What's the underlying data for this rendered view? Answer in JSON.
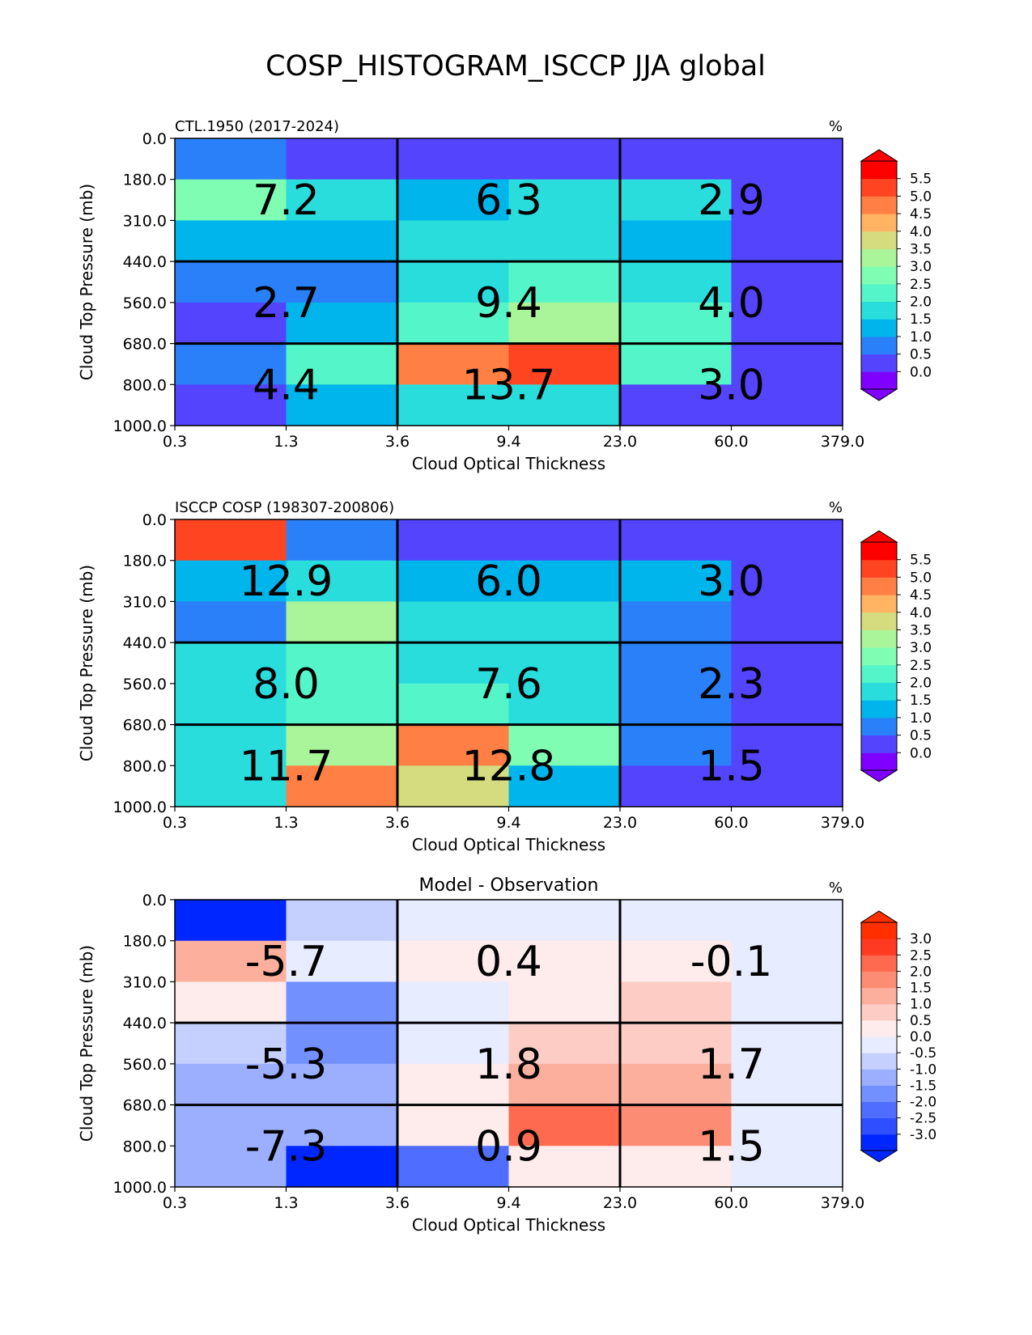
{
  "figure_title": "COSP_HISTOGRAM_ISCCP JJA global",
  "chart_data": [
    {
      "type": "heatmap",
      "title_left": "CTL.1950 (2017-2024)",
      "title_center": "",
      "units": "%",
      "xlabel": "Cloud Optical Thickness",
      "ylabel": "Cloud Top Pressure (mb)",
      "x_ticks": [
        "0.3",
        "1.3",
        "3.6",
        "9.4",
        "23.0",
        "60.0",
        "379.0"
      ],
      "y_ticks": [
        "0.0",
        "180.0",
        "310.0",
        "440.0",
        "560.0",
        "680.0",
        "800.0",
        "1000.0"
      ],
      "cells": [
        [
          0.9,
          0.2,
          0.2,
          0.2,
          0.2,
          0.2
        ],
        [
          2.6,
          1.9,
          1.4,
          1.9,
          1.9,
          0.2
        ],
        [
          1.4,
          1.4,
          1.9,
          1.9,
          1.4,
          0.2
        ],
        [
          0.9,
          0.9,
          1.9,
          2.4,
          1.9,
          0.2
        ],
        [
          0.2,
          1.4,
          2.4,
          3.2,
          2.4,
          0.2
        ],
        [
          0.9,
          2.4,
          4.7,
          5.3,
          2.4,
          0.2
        ],
        [
          0.2,
          1.4,
          1.9,
          1.9,
          0.2,
          0.2
        ]
      ],
      "block_sums": [
        "7.2",
        "6.3",
        "2.9",
        "2.7",
        "9.4",
        "4.0",
        "4.4",
        "13.7",
        "3.0"
      ],
      "colorbar": {
        "cmap": "rainbow",
        "levels": [
          -0.5,
          0.0,
          0.5,
          1.0,
          1.5,
          2.0,
          2.5,
          3.0,
          3.5,
          4.0,
          4.5,
          5.0,
          5.5,
          6.0
        ],
        "tick_labels": [
          "0.0",
          "0.5",
          "1.0",
          "1.5",
          "2.0",
          "2.5",
          "3.0",
          "3.5",
          "4.0",
          "4.5",
          "5.0",
          "5.5"
        ],
        "extend": "both"
      }
    },
    {
      "type": "heatmap",
      "title_left": "ISCCP COSP (198307-200806)",
      "title_center": "",
      "units": "%",
      "xlabel": "Cloud Optical Thickness",
      "ylabel": "Cloud Top Pressure (mb)",
      "x_ticks": [
        "0.3",
        "1.3",
        "3.6",
        "9.4",
        "23.0",
        "60.0",
        "379.0"
      ],
      "y_ticks": [
        "0.0",
        "180.0",
        "310.0",
        "440.0",
        "560.0",
        "680.0",
        "800.0",
        "1000.0"
      ],
      "cells": [
        [
          5.3,
          0.9,
          0.2,
          0.2,
          0.2,
          0.2
        ],
        [
          1.4,
          1.9,
          1.4,
          1.4,
          1.4,
          0.2
        ],
        [
          0.9,
          3.2,
          1.9,
          1.9,
          0.9,
          0.2
        ],
        [
          1.9,
          2.4,
          1.9,
          1.9,
          0.9,
          0.2
        ],
        [
          1.9,
          2.4,
          2.4,
          1.9,
          0.9,
          0.2
        ],
        [
          1.9,
          3.2,
          4.7,
          2.7,
          0.9,
          0.2
        ],
        [
          1.9,
          4.7,
          3.7,
          1.4,
          0.2,
          0.2
        ]
      ],
      "block_sums": [
        "12.9",
        "6.0",
        "3.0",
        "8.0",
        "7.6",
        "2.3",
        "11.7",
        "12.8",
        "1.5"
      ],
      "colorbar": {
        "cmap": "rainbow",
        "levels": [
          -0.5,
          0.0,
          0.5,
          1.0,
          1.5,
          2.0,
          2.5,
          3.0,
          3.5,
          4.0,
          4.5,
          5.0,
          5.5,
          6.0
        ],
        "tick_labels": [
          "0.0",
          "0.5",
          "1.0",
          "1.5",
          "2.0",
          "2.5",
          "3.0",
          "3.5",
          "4.0",
          "4.5",
          "5.0",
          "5.5"
        ],
        "extend": "both"
      }
    },
    {
      "type": "heatmap",
      "title_left": "",
      "title_center": "Model - Observation",
      "units": "%",
      "xlabel": "Cloud Optical Thickness",
      "ylabel": "Cloud Top Pressure (mb)",
      "x_ticks": [
        "0.3",
        "1.3",
        "3.6",
        "9.4",
        "23.0",
        "60.0",
        "379.0"
      ],
      "y_ticks": [
        "0.0",
        "180.0",
        "310.0",
        "440.0",
        "560.0",
        "680.0",
        "800.0",
        "1000.0"
      ],
      "cells": [
        [
          -4.0,
          -0.7,
          -0.2,
          -0.2,
          -0.2,
          -0.2
        ],
        [
          1.2,
          -0.2,
          0.2,
          0.2,
          0.2,
          -0.2
        ],
        [
          0.2,
          -1.7,
          -0.2,
          0.2,
          0.7,
          -0.2
        ],
        [
          -0.7,
          -1.7,
          -0.2,
          0.7,
          0.7,
          -0.2
        ],
        [
          -1.2,
          -1.2,
          0.2,
          1.2,
          1.2,
          -0.2
        ],
        [
          -1.2,
          -1.2,
          0.2,
          2.2,
          1.7,
          -0.2
        ],
        [
          -1.2,
          -4.0,
          -2.2,
          0.2,
          0.2,
          -0.2
        ]
      ],
      "block_sums": [
        "-5.7",
        "0.4",
        "-0.1",
        "-5.3",
        "1.8",
        "1.7",
        "-7.3",
        "0.9",
        "1.5"
      ],
      "colorbar": {
        "cmap": "bwr",
        "levels": [
          -3.5,
          -3.0,
          -2.5,
          -2.0,
          -1.5,
          -1.0,
          -0.5,
          0.0,
          0.5,
          1.0,
          1.5,
          2.0,
          2.5,
          3.0,
          3.5
        ],
        "tick_labels": [
          "-3.0",
          "-2.5",
          "-2.0",
          "-1.5",
          "-1.0",
          "-0.5",
          "0.0",
          "0.5",
          "1.0",
          "1.5",
          "2.0",
          "2.5",
          "3.0"
        ],
        "extend": "both"
      }
    }
  ],
  "palettes": {
    "rainbow": [
      "#7f00ff",
      "#5444fe",
      "#2a80f8",
      "#00b4ec",
      "#2adddd",
      "#54f6c9",
      "#7ffeb3",
      "#aaf599",
      "#d4dc7f",
      "#feb462",
      "#ff7f44",
      "#ff4422",
      "#ff0000",
      "#ff0000"
    ],
    "bwr": [
      "#0026ff",
      "#2e4eff",
      "#4f6eff",
      "#7390ff",
      "#9cafff",
      "#c6d0ff",
      "#e8ecff",
      "#fdeceb",
      "#fdcdc5",
      "#fcaf9c",
      "#fc8c73",
      "#fd6a4f",
      "#fe3a22",
      "#ff2f00"
    ]
  }
}
